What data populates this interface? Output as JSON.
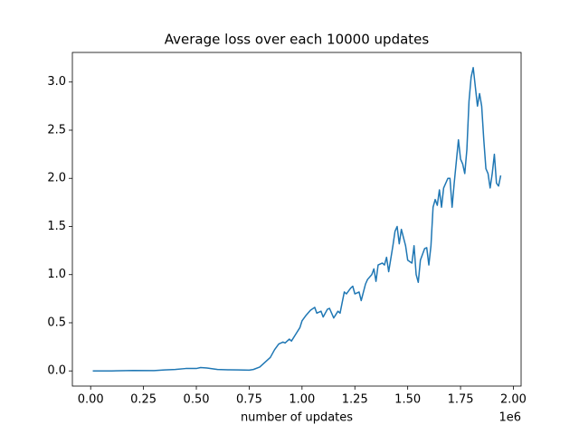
{
  "chart_data": {
    "type": "line",
    "title": "Average loss over each 10000 updates",
    "x_label": "number of updates",
    "x_offset_label": "1e6",
    "xlim": [
      -86500,
      2036500
    ],
    "ylim": [
      -0.1575,
      3.3075
    ],
    "xticks": [
      {
        "value": 0,
        "label": "0.00"
      },
      {
        "value": 250000,
        "label": "0.25"
      },
      {
        "value": 500000,
        "label": "0.50"
      },
      {
        "value": 750000,
        "label": "0.75"
      },
      {
        "value": 1000000,
        "label": "1.00"
      },
      {
        "value": 1250000,
        "label": "1.25"
      },
      {
        "value": 1500000,
        "label": "1.50"
      },
      {
        "value": 1750000,
        "label": "1.75"
      },
      {
        "value": 2000000,
        "label": "2.00"
      }
    ],
    "yticks": [
      {
        "value": 0,
        "label": "0.0"
      },
      0.5,
      {
        "value": 1,
        "label": "1.0"
      },
      1.5,
      {
        "value": 2,
        "label": "2.0"
      },
      2.5,
      {
        "value": 3,
        "label": "3.0"
      }
    ],
    "x": [
      10000,
      100000,
      200000,
      300000,
      350000,
      400000,
      450000,
      500000,
      520000,
      550000,
      600000,
      650000,
      700000,
      750000,
      770000,
      800000,
      830000,
      850000,
      870000,
      890000,
      910000,
      920000,
      940000,
      950000,
      970000,
      990000,
      1000000,
      1020000,
      1040000,
      1060000,
      1070000,
      1090000,
      1100000,
      1120000,
      1130000,
      1150000,
      1170000,
      1180000,
      1200000,
      1210000,
      1230000,
      1240000,
      1250000,
      1270000,
      1280000,
      1300000,
      1310000,
      1330000,
      1340000,
      1350000,
      1360000,
      1380000,
      1390000,
      1400000,
      1410000,
      1430000,
      1440000,
      1450000,
      1460000,
      1470000,
      1490000,
      1500000,
      1520000,
      1530000,
      1540000,
      1550000,
      1560000,
      1580000,
      1590000,
      1600000,
      1610000,
      1620000,
      1630000,
      1640000,
      1650000,
      1660000,
      1670000,
      1690000,
      1700000,
      1710000,
      1720000,
      1740000,
      1750000,
      1760000,
      1770000,
      1780000,
      1790000,
      1800000,
      1810000,
      1820000,
      1830000,
      1840000,
      1850000,
      1860000,
      1870000,
      1880000,
      1890000,
      1900000,
      1910000,
      1920000,
      1930000,
      1940000
    ],
    "series": [
      {
        "color": "#1f77b4",
        "values": [
          0.0,
          0.0,
          0.005,
          0.003,
          0.01,
          0.015,
          0.025,
          0.025,
          0.035,
          0.03,
          0.015,
          0.012,
          0.01,
          0.008,
          0.015,
          0.04,
          0.1,
          0.14,
          0.22,
          0.28,
          0.3,
          0.29,
          0.33,
          0.31,
          0.38,
          0.45,
          0.52,
          0.58,
          0.63,
          0.66,
          0.6,
          0.62,
          0.56,
          0.64,
          0.65,
          0.55,
          0.62,
          0.6,
          0.82,
          0.8,
          0.86,
          0.88,
          0.8,
          0.82,
          0.73,
          0.9,
          0.95,
          1.0,
          1.06,
          0.93,
          1.1,
          1.12,
          1.1,
          1.18,
          1.03,
          1.3,
          1.45,
          1.5,
          1.32,
          1.47,
          1.3,
          1.15,
          1.12,
          1.3,
          1.0,
          0.92,
          1.15,
          1.27,
          1.28,
          1.1,
          1.3,
          1.7,
          1.78,
          1.72,
          1.88,
          1.7,
          1.9,
          2.0,
          2.0,
          1.7,
          1.95,
          2.4,
          2.2,
          2.15,
          2.05,
          2.3,
          2.8,
          3.05,
          3.15,
          2.95,
          2.75,
          2.88,
          2.75,
          2.4,
          2.1,
          2.05,
          1.9,
          2.05,
          2.25,
          1.95,
          1.92,
          2.03
        ]
      }
    ]
  }
}
